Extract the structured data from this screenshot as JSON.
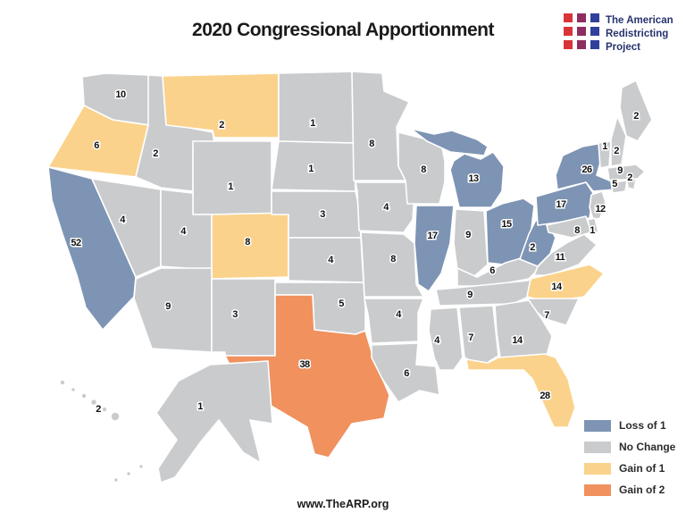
{
  "title": "2020 Congressional Apportionment",
  "logo": {
    "lines": [
      "The American",
      "Redistricting",
      "Project"
    ],
    "grid_colors": [
      "#d93438",
      "#8e2d5f",
      "#31409b"
    ],
    "text_color": "#27336e"
  },
  "legend": {
    "items": [
      {
        "key": "loss1",
        "label": "Loss of 1",
        "color": "#7d94b4"
      },
      {
        "key": "nochange",
        "label": "No Change",
        "color": "#c9cbcd"
      },
      {
        "key": "gain1",
        "label": "Gain of 1",
        "color": "#fbd28b"
      },
      {
        "key": "gain2",
        "label": "Gain of 2",
        "color": "#f0915e"
      }
    ]
  },
  "footer": {
    "url": "www.TheARP.org"
  },
  "colors": {
    "loss1": "#7d94b4",
    "nochange": "#c9cbcd",
    "gain1": "#fbd28b",
    "gain2": "#f0915e",
    "border": "#ffffff",
    "label_text": "#111111",
    "label_halo": "#ffffff"
  },
  "map": {
    "states": [
      {
        "id": "WA",
        "name": "Washington",
        "seats": "10",
        "change": "nochange"
      },
      {
        "id": "OR",
        "name": "Oregon",
        "seats": "6",
        "change": "gain1"
      },
      {
        "id": "CA",
        "name": "California",
        "seats": "52",
        "change": "loss1"
      },
      {
        "id": "NV",
        "name": "Nevada",
        "seats": "4",
        "change": "nochange"
      },
      {
        "id": "ID",
        "name": "Idaho",
        "seats": "2",
        "change": "nochange"
      },
      {
        "id": "MT",
        "name": "Montana",
        "seats": "2",
        "change": "gain1"
      },
      {
        "id": "WY",
        "name": "Wyoming",
        "seats": "1",
        "change": "nochange"
      },
      {
        "id": "UT",
        "name": "Utah",
        "seats": "4",
        "change": "nochange"
      },
      {
        "id": "CO",
        "name": "Colorado",
        "seats": "8",
        "change": "gain1"
      },
      {
        "id": "AZ",
        "name": "Arizona",
        "seats": "9",
        "change": "nochange"
      },
      {
        "id": "NM",
        "name": "New Mexico",
        "seats": "3",
        "change": "nochange"
      },
      {
        "id": "ND",
        "name": "North Dakota",
        "seats": "1",
        "change": "nochange"
      },
      {
        "id": "SD",
        "name": "South Dakota",
        "seats": "1",
        "change": "nochange"
      },
      {
        "id": "NE",
        "name": "Nebraska",
        "seats": "3",
        "change": "nochange"
      },
      {
        "id": "KS",
        "name": "Kansas",
        "seats": "4",
        "change": "nochange"
      },
      {
        "id": "OK",
        "name": "Oklahoma",
        "seats": "5",
        "change": "nochange"
      },
      {
        "id": "TX",
        "name": "Texas",
        "seats": "38",
        "change": "gain2"
      },
      {
        "id": "MN",
        "name": "Minnesota",
        "seats": "8",
        "change": "nochange"
      },
      {
        "id": "IA",
        "name": "Iowa",
        "seats": "4",
        "change": "nochange"
      },
      {
        "id": "MO",
        "name": "Missouri",
        "seats": "8",
        "change": "nochange"
      },
      {
        "id": "AR",
        "name": "Arkansas",
        "seats": "4",
        "change": "nochange"
      },
      {
        "id": "LA",
        "name": "Louisiana",
        "seats": "6",
        "change": "nochange"
      },
      {
        "id": "WI",
        "name": "Wisconsin",
        "seats": "8",
        "change": "nochange"
      },
      {
        "id": "IL",
        "name": "Illinois",
        "seats": "17",
        "change": "loss1"
      },
      {
        "id": "MI",
        "name": "Michigan",
        "seats": "13",
        "change": "loss1"
      },
      {
        "id": "IN",
        "name": "Indiana",
        "seats": "9",
        "change": "nochange"
      },
      {
        "id": "OH",
        "name": "Ohio",
        "seats": "15",
        "change": "loss1"
      },
      {
        "id": "KY",
        "name": "Kentucky",
        "seats": "6",
        "change": "nochange"
      },
      {
        "id": "TN",
        "name": "Tennessee",
        "seats": "9",
        "change": "nochange"
      },
      {
        "id": "WV",
        "name": "West Virginia",
        "seats": "2",
        "change": "loss1"
      },
      {
        "id": "VA",
        "name": "Virginia",
        "seats": "11",
        "change": "nochange"
      },
      {
        "id": "NC",
        "name": "North Carolina",
        "seats": "14",
        "change": "gain1"
      },
      {
        "id": "SC",
        "name": "South Carolina",
        "seats": "7",
        "change": "nochange"
      },
      {
        "id": "GA",
        "name": "Georgia",
        "seats": "14",
        "change": "nochange"
      },
      {
        "id": "AL",
        "name": "Alabama",
        "seats": "7",
        "change": "nochange"
      },
      {
        "id": "MS",
        "name": "Mississippi",
        "seats": "4",
        "change": "nochange"
      },
      {
        "id": "FL",
        "name": "Florida",
        "seats": "28",
        "change": "gain1"
      },
      {
        "id": "NY",
        "name": "New York",
        "seats": "26",
        "change": "loss1"
      },
      {
        "id": "PA",
        "name": "Pennsylvania",
        "seats": "17",
        "change": "loss1"
      },
      {
        "id": "NJ",
        "name": "New Jersey",
        "seats": "12",
        "change": "nochange"
      },
      {
        "id": "ME",
        "name": "Maine",
        "seats": "2",
        "change": "nochange"
      },
      {
        "id": "NH",
        "name": "New Hampshire",
        "seats": "2",
        "change": "nochange"
      },
      {
        "id": "VT",
        "name": "Vermont",
        "seats": "1",
        "change": "nochange"
      },
      {
        "id": "MA",
        "name": "Massachusetts",
        "seats": "9",
        "change": "nochange"
      },
      {
        "id": "RI",
        "name": "Rhode Island",
        "seats": "2",
        "change": "nochange"
      },
      {
        "id": "CT",
        "name": "Connecticut",
        "seats": "5",
        "change": "nochange"
      },
      {
        "id": "DE",
        "name": "Delaware",
        "seats": "1",
        "change": "nochange"
      },
      {
        "id": "MD",
        "name": "Maryland",
        "seats": "8",
        "change": "nochange"
      },
      {
        "id": "AK",
        "name": "Alaska",
        "seats": "1",
        "change": "nochange"
      },
      {
        "id": "HI",
        "name": "Hawaii",
        "seats": "2",
        "change": "nochange"
      }
    ]
  }
}
